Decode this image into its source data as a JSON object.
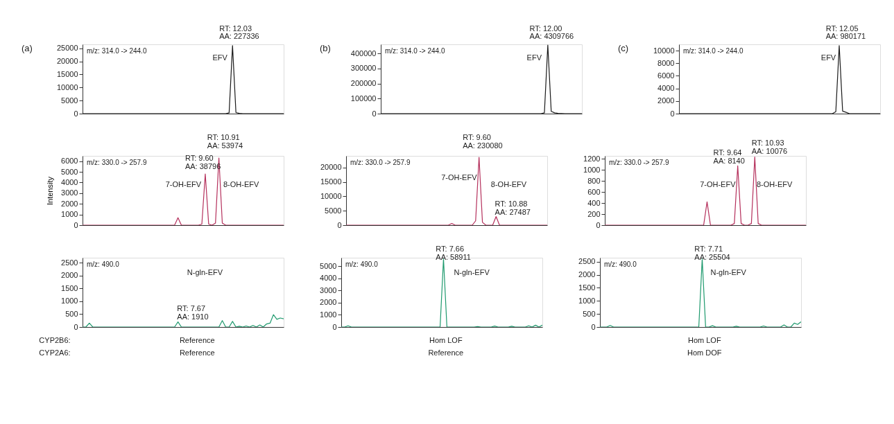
{
  "chart_data": [
    {
      "type": "line",
      "title": "(a)",
      "subtitle": "m/z: 314.0 -> 244.0",
      "tick_labels": "y",
      "grid": false,
      "color": "#1a1a1a",
      "ylim": [
        0,
        26500
      ],
      "yticks": [
        0,
        5000,
        10000,
        15000,
        20000,
        25000
      ],
      "categories": [
        null,
        null,
        null,
        null,
        null,
        null,
        null,
        null,
        null,
        null,
        null,
        null,
        null,
        null,
        null,
        null,
        null,
        null,
        null,
        null,
        null,
        null,
        null,
        null,
        null,
        null,
        null,
        null,
        null,
        null,
        null,
        null,
        null,
        null,
        null,
        null,
        null,
        null,
        null,
        null,
        null,
        null,
        null,
        null,
        null,
        null,
        null,
        null,
        null,
        null,
        null,
        null,
        null,
        null,
        null,
        null,
        null,
        null,
        null,
        null
      ],
      "values": [
        0,
        0,
        0,
        0,
        0,
        0,
        0,
        0,
        0,
        0,
        0,
        0,
        0,
        0,
        0,
        0,
        0,
        0,
        0,
        0,
        0,
        0,
        0,
        0,
        0,
        0,
        0,
        0,
        0,
        0,
        0,
        0,
        0,
        0,
        0,
        0,
        0,
        0,
        0,
        0,
        0,
        0,
        0,
        300,
        26000,
        400,
        100,
        0,
        0,
        0,
        0,
        0,
        0,
        0,
        0,
        0,
        0,
        0,
        0,
        0
      ],
      "annotations": [
        "RT: 12.03",
        "AA: 227336",
        "EFV"
      ]
    },
    {
      "type": "line",
      "title": "(b)",
      "subtitle": "m/z: 314.0 -> 244.0",
      "tick_labels": "y",
      "grid": false,
      "color": "#1a1a1a",
      "ylim": [
        0,
        460000
      ],
      "yticks": [
        0,
        100000,
        200000,
        300000,
        400000
      ],
      "categories": [
        null,
        null,
        null,
        null,
        null,
        null,
        null,
        null,
        null,
        null,
        null,
        null,
        null,
        null,
        null,
        null,
        null,
        null,
        null,
        null,
        null,
        null,
        null,
        null,
        null,
        null,
        null,
        null,
        null,
        null,
        null,
        null,
        null,
        null,
        null,
        null,
        null,
        null,
        null,
        null,
        null,
        null,
        null,
        null,
        null,
        null,
        null,
        null,
        null,
        null,
        null,
        null,
        null,
        null,
        null,
        null,
        null,
        null,
        null,
        null
      ],
      "values": [
        0,
        0,
        0,
        0,
        0,
        0,
        0,
        0,
        0,
        0,
        0,
        0,
        0,
        0,
        0,
        0,
        0,
        0,
        0,
        0,
        0,
        0,
        0,
        0,
        0,
        0,
        0,
        0,
        0,
        0,
        0,
        0,
        0,
        0,
        0,
        0,
        0,
        0,
        0,
        0,
        0,
        0,
        0,
        0,
        0,
        0,
        0,
        0,
        5000,
        455000,
        15000,
        5000,
        2000,
        1000,
        0,
        0,
        0,
        0,
        0,
        0
      ],
      "annotations": [
        "RT: 12.00",
        "AA: 4309766",
        "EFV"
      ]
    },
    {
      "type": "line",
      "title": "(c)",
      "subtitle": "m/z: 314.0 -> 244.0",
      "tick_labels": "y",
      "grid": false,
      "color": "#1a1a1a",
      "ylim": [
        0,
        11000
      ],
      "yticks": [
        0,
        2000,
        4000,
        6000,
        8000,
        10000
      ],
      "categories": [
        null,
        null,
        null,
        null,
        null,
        null,
        null,
        null,
        null,
        null,
        null,
        null,
        null,
        null,
        null,
        null,
        null,
        null,
        null,
        null,
        null,
        null,
        null,
        null,
        null,
        null,
        null,
        null,
        null,
        null,
        null,
        null,
        null,
        null,
        null,
        null,
        null,
        null,
        null,
        null,
        null,
        null,
        null,
        null,
        null,
        null,
        null,
        null,
        null,
        null,
        null,
        null,
        null,
        null,
        null,
        null,
        null,
        null,
        null,
        null
      ],
      "values": [
        0,
        0,
        0,
        0,
        0,
        0,
        0,
        0,
        0,
        0,
        0,
        0,
        0,
        0,
        0,
        0,
        0,
        0,
        0,
        0,
        0,
        0,
        0,
        0,
        0,
        0,
        0,
        0,
        0,
        0,
        0,
        0,
        0,
        0,
        0,
        0,
        0,
        0,
        0,
        0,
        0,
        0,
        0,
        0,
        0,
        0,
        300,
        10800,
        400,
        200,
        0,
        0,
        0,
        0,
        0,
        0,
        0,
        0,
        0,
        0
      ],
      "annotations": [
        "RT: 12.05",
        "AA: 980171",
        "EFV"
      ]
    },
    {
      "type": "line",
      "subtitle": "m/z: 330.0 -> 257.9",
      "ylabel": "Intensity",
      "tick_labels": "y",
      "grid": false,
      "color": "#b5305c",
      "ylim": [
        0,
        6500
      ],
      "yticks": [
        0,
        1000,
        2000,
        3000,
        4000,
        5000,
        6000
      ],
      "categories": [
        null,
        null,
        null,
        null,
        null,
        null,
        null,
        null,
        null,
        null,
        null,
        null,
        null,
        null,
        null,
        null,
        null,
        null,
        null,
        null,
        null,
        null,
        null,
        null,
        null,
        null,
        null,
        null,
        null,
        null,
        null,
        null,
        null,
        null,
        null,
        null,
        null,
        null,
        null,
        null,
        null,
        null,
        null,
        null,
        null,
        null,
        null,
        null,
        null,
        null,
        null,
        null,
        null,
        null,
        null,
        null,
        null,
        null,
        null,
        null
      ],
      "values": [
        0,
        0,
        0,
        0,
        0,
        0,
        0,
        0,
        0,
        0,
        0,
        0,
        0,
        0,
        0,
        0,
        0,
        0,
        0,
        0,
        0,
        0,
        0,
        0,
        0,
        0,
        0,
        0,
        700,
        0,
        0,
        0,
        0,
        0,
        0,
        100,
        4800,
        100,
        0,
        200,
        6300,
        200,
        0,
        0,
        0,
        0,
        0,
        0,
        0,
        0,
        0,
        0,
        0,
        0,
        0,
        0,
        0,
        0,
        0,
        0
      ],
      "annotations": [
        "RT: 10.91",
        "AA: 53974",
        "RT: 9.60",
        "AA: 38796",
        "7-OH-EFV",
        "8-OH-EFV"
      ]
    },
    {
      "type": "line",
      "subtitle": "m/z: 330.0 -> 257.9",
      "tick_labels": "y",
      "grid": false,
      "color": "#b5305c",
      "ylim": [
        0,
        24000
      ],
      "yticks": [
        0,
        5000,
        10000,
        15000,
        20000
      ],
      "categories": [
        null,
        null,
        null,
        null,
        null,
        null,
        null,
        null,
        null,
        null,
        null,
        null,
        null,
        null,
        null,
        null,
        null,
        null,
        null,
        null,
        null,
        null,
        null,
        null,
        null,
        null,
        null,
        null,
        null,
        null,
        null,
        null,
        null,
        null,
        null,
        null,
        null,
        null,
        null,
        null,
        null,
        null,
        null,
        null,
        null,
        null,
        null,
        null,
        null,
        null,
        null,
        null,
        null,
        null,
        null,
        null,
        null,
        null,
        null,
        null
      ],
      "values": [
        0,
        0,
        0,
        0,
        0,
        0,
        0,
        0,
        0,
        0,
        0,
        0,
        0,
        0,
        0,
        0,
        0,
        0,
        0,
        0,
        0,
        0,
        0,
        0,
        0,
        0,
        0,
        0,
        0,
        0,
        0,
        600,
        0,
        0,
        0,
        0,
        0,
        0,
        1500,
        23500,
        1000,
        0,
        0,
        0,
        3000,
        0,
        0,
        0,
        0,
        0,
        0,
        0,
        0,
        0,
        0,
        0,
        0,
        0,
        0,
        0
      ],
      "annotations": [
        "RT: 9.60",
        "AA: 230080",
        "7-OH-EFV",
        "8-OH-EFV",
        "RT: 10.88",
        "AA: 27487"
      ]
    },
    {
      "type": "line",
      "subtitle": "m/z: 330.0 -> 257.9",
      "tick_labels": "y",
      "grid": false,
      "color": "#b5305c",
      "ylim": [
        0,
        1250
      ],
      "yticks": [
        0,
        200,
        400,
        600,
        800,
        1000,
        1200
      ],
      "categories": [
        null,
        null,
        null,
        null,
        null,
        null,
        null,
        null,
        null,
        null,
        null,
        null,
        null,
        null,
        null,
        null,
        null,
        null,
        null,
        null,
        null,
        null,
        null,
        null,
        null,
        null,
        null,
        null,
        null,
        null,
        null,
        null,
        null,
        null,
        null,
        null,
        null,
        null,
        null,
        null,
        null,
        null,
        null,
        null,
        null,
        null,
        null,
        null,
        null,
        null,
        null,
        null,
        null,
        null,
        null,
        null,
        null,
        null,
        null,
        null
      ],
      "values": [
        0,
        0,
        0,
        0,
        0,
        0,
        0,
        0,
        0,
        0,
        0,
        0,
        0,
        0,
        0,
        0,
        0,
        0,
        0,
        0,
        0,
        0,
        0,
        0,
        0,
        0,
        0,
        0,
        0,
        0,
        420,
        0,
        0,
        0,
        0,
        0,
        0,
        0,
        30,
        1070,
        30,
        0,
        0,
        30,
        1230,
        30,
        0,
        0,
        0,
        0,
        0,
        0,
        0,
        0,
        0,
        0,
        0,
        0,
        0,
        0
      ],
      "annotations": [
        "RT: 9.64",
        "AA: 8140",
        "RT: 10.93",
        "AA: 10076",
        "7-OH-EFV",
        "8-OH-EFV"
      ]
    },
    {
      "type": "line",
      "subtitle": "m/z: 490.0",
      "tick_labels": "y",
      "grid": false,
      "color": "#1f9a6e",
      "ylim": [
        0,
        2700
      ],
      "yticks": [
        0,
        500,
        1000,
        1500,
        2000,
        2500
      ],
      "categories": [
        null,
        null,
        null,
        null,
        null,
        null,
        null,
        null,
        null,
        null,
        null,
        null,
        null,
        null,
        null,
        null,
        null,
        null,
        null,
        null,
        null,
        null,
        null,
        null,
        null,
        null,
        null,
        null,
        null,
        null,
        null,
        null,
        null,
        null,
        null,
        null,
        null,
        null,
        null,
        null,
        null,
        null,
        null,
        null,
        null,
        null,
        null,
        null,
        null,
        null,
        null,
        null,
        null,
        null,
        null,
        null,
        null,
        null,
        null,
        null
      ],
      "values": [
        0,
        0,
        150,
        0,
        0,
        0,
        0,
        0,
        0,
        0,
        0,
        0,
        0,
        0,
        0,
        0,
        0,
        0,
        0,
        0,
        0,
        0,
        0,
        0,
        0,
        0,
        0,
        0,
        200,
        0,
        0,
        0,
        0,
        0,
        0,
        0,
        0,
        0,
        0,
        0,
        0,
        250,
        0,
        0,
        220,
        0,
        30,
        0,
        40,
        0,
        60,
        0,
        80,
        0,
        120,
        150,
        480,
        300,
        350,
        320
      ],
      "annotations": [
        "N-gln-EFV",
        "RT: 7.67",
        "AA: 1910",
        "CYP2B6:",
        "CYP2A6:",
        "Reference",
        "Reference"
      ]
    },
    {
      "type": "line",
      "subtitle": "m/z: 490.0",
      "tick_labels": "y",
      "grid": false,
      "color": "#1f9a6e",
      "ylim": [
        0,
        5700
      ],
      "yticks": [
        0,
        1000,
        2000,
        3000,
        4000,
        5000
      ],
      "categories": [
        null,
        null,
        null,
        null,
        null,
        null,
        null,
        null,
        null,
        null,
        null,
        null,
        null,
        null,
        null,
        null,
        null,
        null,
        null,
        null,
        null,
        null,
        null,
        null,
        null,
        null,
        null,
        null,
        null,
        null,
        null,
        null,
        null,
        null,
        null,
        null,
        null,
        null,
        null,
        null,
        null,
        null,
        null,
        null,
        null,
        null,
        null,
        null,
        null,
        null,
        null,
        null,
        null,
        null,
        null,
        null,
        null,
        null,
        null,
        null
      ],
      "values": [
        0,
        0,
        100,
        0,
        0,
        0,
        0,
        0,
        0,
        0,
        0,
        0,
        0,
        0,
        0,
        0,
        0,
        0,
        0,
        0,
        0,
        0,
        0,
        0,
        0,
        0,
        0,
        0,
        0,
        0,
        5600,
        0,
        0,
        0,
        0,
        0,
        0,
        0,
        0,
        0,
        40,
        0,
        0,
        0,
        0,
        80,
        0,
        0,
        0,
        0,
        60,
        0,
        0,
        0,
        0,
        100,
        0,
        150,
        0,
        150
      ],
      "annotations": [
        "RT: 7.66",
        "AA: 58911",
        "N-gln-EFV",
        "Hom LOF",
        "Reference"
      ]
    },
    {
      "type": "line",
      "subtitle": "m/z: 490.0",
      "tick_labels": "y",
      "grid": false,
      "color": "#1f9a6e",
      "ylim": [
        0,
        2650
      ],
      "yticks": [
        0,
        500,
        1000,
        1500,
        2000,
        2500
      ],
      "categories": [
        null,
        null,
        null,
        null,
        null,
        null,
        null,
        null,
        null,
        null,
        null,
        null,
        null,
        null,
        null,
        null,
        null,
        null,
        null,
        null,
        null,
        null,
        null,
        null,
        null,
        null,
        null,
        null,
        null,
        null,
        null,
        null,
        null,
        null,
        null,
        null,
        null,
        null,
        null,
        null,
        null,
        null,
        null,
        null,
        null,
        null,
        null,
        null,
        null,
        null,
        null,
        null,
        null,
        null,
        null,
        null,
        null,
        null,
        null,
        null
      ],
      "values": [
        0,
        0,
        0,
        60,
        0,
        0,
        0,
        0,
        0,
        0,
        0,
        0,
        0,
        0,
        0,
        0,
        0,
        0,
        0,
        0,
        0,
        0,
        0,
        0,
        0,
        0,
        0,
        0,
        0,
        0,
        2600,
        0,
        0,
        50,
        0,
        0,
        0,
        0,
        0,
        0,
        30,
        0,
        0,
        0,
        0,
        0,
        0,
        0,
        40,
        0,
        0,
        0,
        0,
        0,
        80,
        0,
        0,
        150,
        100,
        200
      ],
      "annotations": [
        "RT: 7.71",
        "AA: 25504",
        "N-gln-EFV",
        "Hom LOF",
        "Hom DOF"
      ]
    }
  ]
}
